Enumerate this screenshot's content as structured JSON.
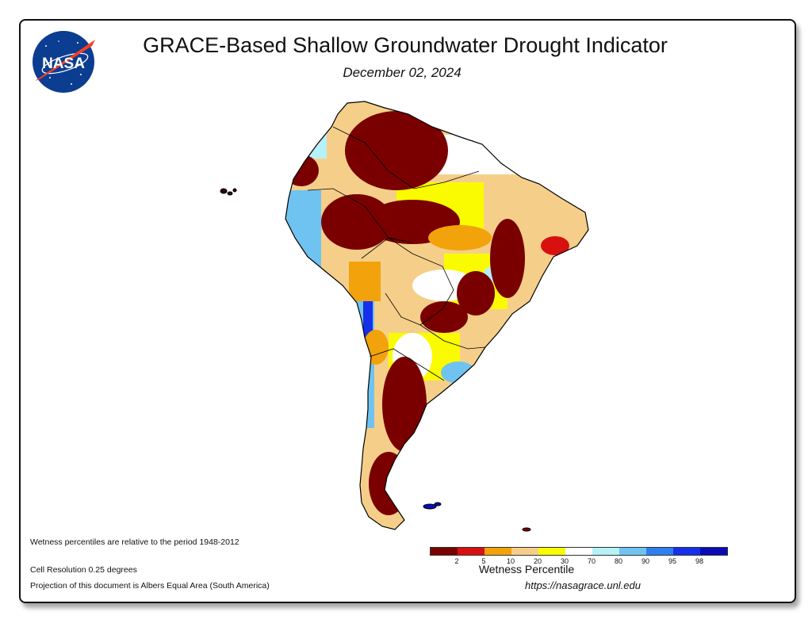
{
  "header": {
    "title": "GRACE-Based Shallow Groundwater Drought Indicator",
    "date": "December 02, 2024",
    "logo_text": "NASA"
  },
  "notes": {
    "period": "Wetness percentiles are relative to the period 1948-2012",
    "resolution": "Cell Resolution 0.25 degrees",
    "projection": "Projection of this document is Albers Equal Area (South America)"
  },
  "legend": {
    "title": "Wetness Percentile",
    "colors": [
      "#7a0000",
      "#d81010",
      "#f2a20a",
      "#f5cf8a",
      "#fbfb00",
      "#ffffff",
      "#b6f1f7",
      "#6fc3f1",
      "#2f7ff0",
      "#1530e8",
      "#0b0bb5"
    ],
    "ticks": [
      "2",
      "5",
      "10",
      "20",
      "30",
      "70",
      "80",
      "90",
      "95",
      "98"
    ]
  },
  "footer": {
    "url": "https://nasagrace.unl.edu"
  }
}
